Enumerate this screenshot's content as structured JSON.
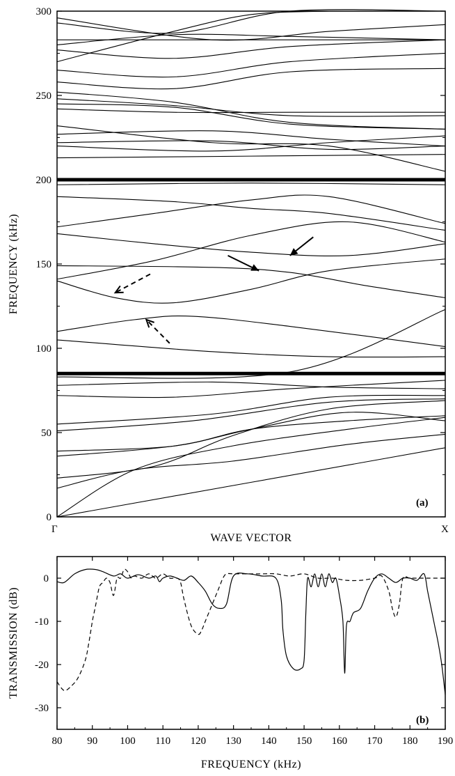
{
  "chart_data": [
    {
      "panel": "(a)",
      "type": "line",
      "ylabel": "FREQUENCY (kHz)",
      "xlabel": "WAVE VECTOR",
      "x_ticks": [
        "Γ",
        "X"
      ],
      "y_ticks": [
        "0",
        "50",
        "100",
        "150",
        "200",
        "250",
        "300"
      ],
      "ylim": [
        0,
        300
      ],
      "xlim": [
        0,
        1
      ],
      "grid": false,
      "bold_lines": [
        85,
        200
      ],
      "bands": [
        [
          [
            0,
            0
          ],
          [
            1,
            41
          ]
        ],
        [
          [
            0,
            0
          ],
          [
            0.2,
            28
          ],
          [
            0.45,
            42
          ],
          [
            0.75,
            52
          ],
          [
            1,
            59
          ]
        ],
        [
          [
            0,
            17
          ],
          [
            0.2,
            28
          ],
          [
            0.45,
            33
          ],
          [
            0.75,
            43
          ],
          [
            1,
            49
          ]
        ],
        [
          [
            0,
            23
          ],
          [
            0.25,
            30
          ],
          [
            0.45,
            48
          ],
          [
            0.7,
            64
          ],
          [
            1,
            69
          ]
        ],
        [
          [
            0,
            36
          ],
          [
            0.3,
            42
          ],
          [
            0.5,
            52
          ],
          [
            0.75,
            62
          ],
          [
            1,
            57
          ]
        ],
        [
          [
            0,
            39
          ],
          [
            0.3,
            42
          ],
          [
            0.5,
            52
          ],
          [
            0.75,
            57
          ],
          [
            1,
            60
          ]
        ],
        [
          [
            0,
            51
          ],
          [
            0.35,
            57
          ],
          [
            0.7,
            68
          ],
          [
            1,
            70
          ]
        ],
        [
          [
            0,
            55
          ],
          [
            0.4,
            61
          ],
          [
            0.7,
            71
          ],
          [
            1,
            72
          ]
        ],
        [
          [
            0,
            72
          ],
          [
            0.3,
            71
          ],
          [
            0.6,
            76
          ],
          [
            1,
            81
          ]
        ],
        [
          [
            0,
            78
          ],
          [
            0.4,
            80
          ],
          [
            0.7,
            77
          ],
          [
            1,
            76
          ]
        ],
        [
          [
            0,
            83
          ],
          [
            0.6,
            86
          ],
          [
            1,
            123
          ]
        ],
        [
          [
            0,
            105
          ],
          [
            0.4,
            98
          ],
          [
            0.7,
            95
          ],
          [
            1,
            95
          ]
        ],
        [
          [
            0,
            110
          ],
          [
            0.2,
            117
          ],
          [
            0.35,
            119
          ],
          [
            0.6,
            113
          ],
          [
            1,
            101
          ]
        ],
        [
          [
            0,
            140
          ],
          [
            0.15,
            130
          ],
          [
            0.3,
            127
          ],
          [
            0.5,
            135
          ],
          [
            0.7,
            146
          ],
          [
            1,
            153
          ]
        ],
        [
          [
            0,
            149
          ],
          [
            0.4,
            148
          ],
          [
            0.6,
            145
          ],
          [
            0.8,
            137
          ],
          [
            1,
            130
          ]
        ],
        [
          [
            0,
            141
          ],
          [
            0.25,
            152
          ],
          [
            0.5,
            167
          ],
          [
            0.75,
            175
          ],
          [
            1,
            163
          ]
        ],
        [
          [
            0,
            168
          ],
          [
            0.25,
            162
          ],
          [
            0.5,
            157
          ],
          [
            0.75,
            155
          ],
          [
            1,
            162
          ]
        ],
        [
          [
            0,
            172
          ],
          [
            0.25,
            180
          ],
          [
            0.5,
            188
          ],
          [
            0.7,
            190
          ],
          [
            1,
            174
          ]
        ],
        [
          [
            0,
            190
          ],
          [
            0.3,
            187
          ],
          [
            0.5,
            183
          ],
          [
            0.7,
            180
          ],
          [
            1,
            170
          ]
        ],
        [
          [
            0,
            197
          ],
          [
            0.5,
            198
          ],
          [
            1,
            197
          ]
        ],
        [
          [
            0,
            213
          ],
          [
            0.5,
            214
          ],
          [
            1,
            215
          ]
        ],
        [
          [
            0,
            220
          ],
          [
            0.4,
            217
          ],
          [
            0.7,
            222
          ],
          [
            1,
            226
          ]
        ],
        [
          [
            0,
            222
          ],
          [
            0.4,
            223
          ],
          [
            0.7,
            218
          ],
          [
            1,
            220
          ]
        ],
        [
          [
            0,
            227
          ],
          [
            0.4,
            229
          ],
          [
            0.7,
            224
          ],
          [
            1,
            220
          ]
        ],
        [
          [
            0,
            232
          ],
          [
            0.4,
            222
          ],
          [
            0.7,
            220
          ],
          [
            1,
            205
          ]
        ],
        [
          [
            0,
            242
          ],
          [
            0.3,
            240
          ],
          [
            0.6,
            240
          ],
          [
            1,
            240
          ]
        ],
        [
          [
            0,
            245
          ],
          [
            0.3,
            243
          ],
          [
            0.6,
            233
          ],
          [
            1,
            230
          ]
        ],
        [
          [
            0,
            248
          ],
          [
            0.3,
            244
          ],
          [
            0.6,
            238
          ],
          [
            1,
            238
          ]
        ],
        [
          [
            0,
            252
          ],
          [
            0.3,
            246
          ],
          [
            0.6,
            234
          ],
          [
            1,
            230
          ]
        ],
        [
          [
            0,
            258
          ],
          [
            0.3,
            254
          ],
          [
            0.6,
            264
          ],
          [
            1,
            266
          ]
        ],
        [
          [
            0,
            265
          ],
          [
            0.3,
            261
          ],
          [
            0.6,
            270
          ],
          [
            1,
            275
          ]
        ],
        [
          [
            0,
            277
          ],
          [
            0.3,
            272
          ],
          [
            0.6,
            279
          ],
          [
            1,
            283
          ]
        ],
        [
          [
            0,
            280
          ],
          [
            0.3,
            286
          ],
          [
            0.6,
            285
          ],
          [
            1,
            283
          ]
        ],
        [
          [
            0,
            283
          ],
          [
            0.5,
            283
          ],
          [
            1,
            283
          ]
        ],
        [
          [
            0,
            293
          ],
          [
            0.3,
            287
          ],
          [
            0.6,
            300
          ],
          [
            1,
            300
          ]
        ],
        [
          [
            0,
            296
          ],
          [
            0.4,
            283
          ],
          [
            0.7,
            288
          ],
          [
            1,
            292
          ]
        ],
        [
          [
            0,
            270
          ],
          [
            0.3,
            288
          ],
          [
            0.5,
            298
          ],
          [
            0.7,
            300
          ]
        ]
      ],
      "arrows": [
        {
          "style": "solid",
          "from": [
            0.44,
            155
          ],
          "to": [
            0.52,
            146
          ]
        },
        {
          "style": "solid",
          "from": [
            0.66,
            166
          ],
          "to": [
            0.6,
            155
          ]
        },
        {
          "style": "dashed",
          "from": [
            0.24,
            144
          ],
          "to": [
            0.15,
            133
          ]
        },
        {
          "style": "dashed",
          "from": [
            0.29,
            103
          ],
          "to": [
            0.23,
            117
          ]
        }
      ]
    },
    {
      "panel": "(b)",
      "type": "line",
      "ylabel": "TRANSMISSION (dB)",
      "xlabel": "FREQUENCY (kHz)",
      "x_ticks": [
        "80",
        "90",
        "100",
        "110",
        "120",
        "130",
        "140",
        "150",
        "160",
        "170",
        "180",
        "190"
      ],
      "y_ticks": [
        "0",
        "-10",
        "-20",
        "-30"
      ],
      "xlim": [
        80,
        190
      ],
      "ylim": [
        -35,
        5
      ],
      "grid": false,
      "series": [
        {
          "style": "solid",
          "x": [
            80,
            82,
            85,
            88,
            91,
            93,
            96,
            98,
            100,
            103,
            106,
            108,
            109,
            110,
            112,
            114,
            116,
            118,
            120,
            122,
            124,
            126,
            128,
            130,
            134,
            138,
            142,
            143.5,
            144,
            145,
            147,
            149,
            150,
            150.5,
            151,
            152,
            153,
            154,
            155,
            156,
            157,
            158,
            159,
            160,
            161,
            161.5,
            162,
            163,
            164,
            166,
            168,
            170,
            172,
            174,
            176,
            178,
            180,
            182,
            184,
            185,
            186,
            187,
            188,
            189,
            190
          ],
          "y": [
            -0.8,
            -1,
            1,
            2,
            2,
            1.5,
            0.5,
            1,
            0,
            0.8,
            0,
            0.5,
            -0.8,
            0,
            0.5,
            0,
            -0.5,
            0.5,
            -1,
            -3,
            -6,
            -7,
            -6,
            0.5,
            1,
            0.5,
            0,
            -5,
            -12,
            -18,
            -21,
            -21,
            -19,
            -8,
            0,
            -2,
            1,
            -2,
            1,
            -2,
            1,
            -1,
            0,
            -4,
            -10,
            -22,
            -11,
            -10,
            -8,
            -7,
            -3,
            0,
            1,
            0,
            -1,
            0,
            0,
            -0.5,
            1,
            -3,
            -7,
            -11,
            -15,
            -20,
            -27
          ]
        },
        {
          "style": "dashed",
          "x": [
            80,
            82,
            84,
            86,
            88,
            89,
            90,
            90.5,
            91,
            92,
            93,
            94,
            95,
            96,
            97,
            98,
            99,
            100,
            101,
            102,
            104,
            106,
            108,
            110,
            112,
            114,
            115,
            116,
            118,
            120,
            121,
            122,
            124,
            126,
            127,
            128,
            130,
            134,
            138,
            142,
            146,
            150,
            154,
            158,
            162,
            166,
            170,
            172,
            174,
            175,
            176,
            177,
            178,
            180,
            184,
            188,
            190
          ],
          "y": [
            -24,
            -26,
            -25,
            -23,
            -19,
            -15,
            -10,
            -8,
            -6,
            -2,
            -1,
            0,
            -1,
            -4,
            0,
            0,
            2,
            1.5,
            0,
            0.5,
            0,
            1,
            0,
            1,
            0,
            0,
            -1,
            -5,
            -11,
            -13,
            -12,
            -10,
            -6,
            -2,
            0,
            1,
            1,
            1,
            1,
            1,
            0.5,
            1,
            0,
            0,
            -0.5,
            -0.5,
            0,
            0.5,
            -3,
            -7,
            -9,
            -6,
            0,
            0,
            0,
            0,
            0
          ]
        }
      ]
    }
  ]
}
